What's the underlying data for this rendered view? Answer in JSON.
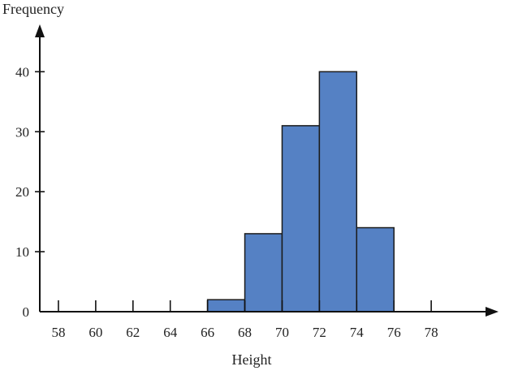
{
  "chart_data": {
    "type": "bar",
    "subtype": "histogram",
    "ylabel": "Frequency",
    "xlabel": "Height",
    "x_ticks": [
      "58",
      "60",
      "62",
      "64",
      "66",
      "68",
      "70",
      "72",
      "74",
      "76",
      "78"
    ],
    "y_ticks": [
      "0",
      "10",
      "20",
      "30",
      "40"
    ],
    "xlim": [
      57,
      81
    ],
    "ylim": [
      0,
      46
    ],
    "bins": [
      {
        "start": 66,
        "end": 68,
        "value": 2
      },
      {
        "start": 68,
        "end": 70,
        "value": 13
      },
      {
        "start": 70,
        "end": 72,
        "value": 31
      },
      {
        "start": 72,
        "end": 74,
        "value": 40
      },
      {
        "start": 74,
        "end": 76,
        "value": 14
      }
    ],
    "bar_color": "#5581c4",
    "grid": false,
    "legend": "none"
  }
}
